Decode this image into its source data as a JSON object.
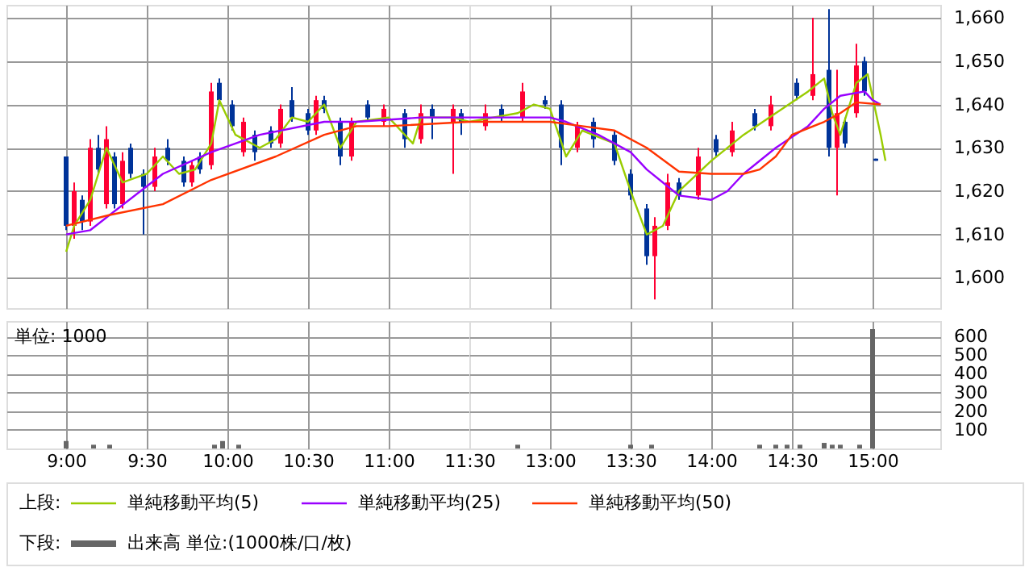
{
  "chart_data": [
    {
      "type": "candlestick",
      "grid": true,
      "tick_labels": false,
      "xlim": [
        8.63,
        11.5
      ],
      "xticks": [
        {
          "value": 9,
          "label": null
        },
        {
          "value": 9.5,
          "label": null
        },
        {
          "value": 10,
          "label": null
        },
        {
          "value": 10.5,
          "label": null
        },
        {
          "value": 11,
          "label": null
        },
        {
          "value": 11.5,
          "label": null
        }
      ],
      "ylim": [
        1593,
        1663
      ],
      "yticks": [
        {
          "value": 1600,
          "label": null
        },
        {
          "value": 1610,
          "label": null
        },
        {
          "value": 1620,
          "label": null
        },
        {
          "value": 1630,
          "label": null
        },
        {
          "value": 1640,
          "label": null
        },
        {
          "value": 1650,
          "label": null
        },
        {
          "value": 1660,
          "label": null
        }
      ],
      "series": [
        {
          "type": "candlestick",
          "color": "#003399",
          "x": [
            9,
            9.1,
            9.2,
            9.3,
            9.4,
            9.48,
            9.63,
            9.73,
            9.83,
            9.95,
            10.03,
            10.17,
            10.27,
            10.4,
            10.5,
            10.6,
            10.7,
            10.87,
            11.1,
            11.27,
            11.45
          ],
          "ohlc": [
            [
              1628,
              1628,
              1611,
              1612
            ],
            [
              1618,
              1619,
              1611,
              1613
            ],
            [
              1630,
              1633,
              1624,
              1625
            ],
            [
              1628,
              1629,
              1616,
              1617
            ],
            [
              1630,
              1631,
              1623,
              1624
            ],
            [
              1624,
              1625,
              1610,
              1621
            ],
            [
              1630,
              1632,
              1626,
              1627
            ],
            [
              1627,
              1628,
              1621,
              1622
            ],
            [
              1628,
              1629,
              1624,
              1625
            ],
            [
              1645,
              1646,
              1640,
              1641
            ],
            [
              1640,
              1641,
              1634,
              1635
            ],
            [
              1633,
              1634,
              1627,
              1629
            ],
            [
              1634,
              1635,
              1630,
              1631
            ],
            [
              1641,
              1644,
              1636,
              1637
            ],
            [
              1638,
              1639,
              1633,
              1634
            ],
            [
              1641,
              1642,
              1638,
              1639
            ],
            [
              1636,
              1637,
              1626,
              1628
            ],
            [
              1640,
              1641,
              1636,
              1637
            ],
            [
              1638,
              1639,
              1630,
              1632
            ],
            [
              1639,
              1640,
              1632,
              1637
            ],
            [
              1638,
              1639,
              1633,
              1636
            ]
          ]
        },
        {
          "type": "candlestick",
          "color": "#ff0033",
          "x": [
            9.05,
            9.15,
            9.25,
            9.35,
            9.55,
            9.78,
            9.9,
            10.1,
            10.33,
            10.55,
            10.77,
            10.97,
            11.2,
            11.4
          ],
          "ohlc": [
            [
              1612,
              1622,
              1609,
              1620
            ],
            [
              1613,
              1632,
              1612,
              1630
            ],
            [
              1617,
              1635,
              1616,
              1632
            ],
            [
              1617,
              1629,
              1616,
              1627
            ],
            [
              1621,
              1630,
              1620,
              1628
            ],
            [
              1622,
              1627,
              1621,
              1626
            ],
            [
              1626,
              1645,
              1625,
              1643
            ],
            [
              1629,
              1637,
              1628,
              1636
            ],
            [
              1631,
              1640,
              1630,
              1639
            ],
            [
              1634,
              1642,
              1633,
              1641
            ],
            [
              1628,
              1637,
              1627,
              1636
            ],
            [
              1636,
              1640,
              1635,
              1639
            ],
            [
              1632,
              1640,
              1631,
              1638
            ],
            [
              1636,
              1640,
              1624,
              1639
            ]
          ]
        },
        {
          "type": "line",
          "color": "#99cc00",
          "x": [
            9,
            9.05,
            9.15,
            9.25,
            9.35,
            9.5,
            9.6,
            9.7,
            9.8,
            9.9,
            9.95,
            10.05,
            10.2,
            10.3,
            10.4,
            10.5,
            10.6,
            10.7,
            10.8,
            11,
            11.15,
            11.2,
            11.4,
            11.5
          ],
          "values": [
            1606,
            1612,
            1618,
            1630,
            1622,
            1624,
            1628,
            1624,
            1625,
            1631,
            1641,
            1633,
            1630,
            1632,
            1637,
            1636,
            1640,
            1630,
            1636,
            1637,
            1631,
            1637,
            1637,
            1636
          ]
        },
        {
          "type": "line",
          "color": "#9900ff",
          "x": [
            9,
            9.15,
            9.27,
            9.6,
            9.9,
            10.2,
            10.6,
            10.8,
            11.2,
            11.5
          ],
          "values": [
            1610,
            1611,
            1614.5,
            1624,
            1629,
            1633,
            1636,
            1636,
            1637,
            1637
          ]
        },
        {
          "type": "line",
          "color": "#ff3300",
          "x": [
            9,
            9.27,
            9.6,
            9.9,
            10.3,
            10.6,
            10.8,
            11,
            11.5
          ],
          "values": [
            1612,
            1614.5,
            1617,
            1622.6,
            1628,
            1633,
            1635,
            1635,
            1636
          ]
        }
      ]
    },
    {
      "type": "candlestick",
      "legend_title": "上段:",
      "legend": "bottom",
      "grid": true,
      "tick_labels": "y",
      "xlim": [
        12.5,
        15.42
      ],
      "xticks": [
        {
          "value": 13,
          "label": null
        },
        {
          "value": 13.5,
          "label": null
        },
        {
          "value": 14,
          "label": null
        },
        {
          "value": 14.5,
          "label": null
        },
        {
          "value": 15,
          "label": null
        }
      ],
      "ylim": [
        1593,
        1663
      ],
      "yticks": [
        {
          "value": 1600,
          "label": "1,600"
        },
        {
          "value": 1610,
          "label": "1,610"
        },
        {
          "value": 1620,
          "label": "1,620"
        },
        {
          "value": 1630,
          "label": "1,630"
        },
        {
          "value": 1640,
          "label": "1,640"
        },
        {
          "value": 1650,
          "label": "1,650"
        },
        {
          "value": 1660,
          "label": "1,660"
        }
      ],
      "series": [
        {
          "type": "candlestick",
          "color": "#003399",
          "x": [
            12.7,
            12.97,
            13.07,
            13.27,
            13.4,
            13.5,
            13.6,
            13.8,
            14.03,
            14.27,
            14.53,
            14.73,
            14.83,
            14.95,
            15.02
          ],
          "ohlc": [
            [
              1639,
              1640,
              1636,
              1637
            ],
            [
              1641,
              1642,
              1639,
              1640
            ],
            [
              1640,
              1641,
              1626,
              1630
            ],
            [
              1636,
              1637,
              1630,
              1632
            ],
            [
              1633,
              1634,
              1626,
              1627
            ],
            [
              1624,
              1625,
              1618,
              1619
            ],
            [
              1616,
              1617,
              1603,
              1605
            ],
            [
              1622,
              1623,
              1618,
              1619
            ],
            [
              1632,
              1633,
              1628,
              1629
            ],
            [
              1638,
              1639,
              1634,
              1635
            ],
            [
              1645,
              1646,
              1641,
              1642
            ],
            [
              1648,
              1662,
              1628,
              1630
            ],
            [
              1636,
              1637,
              1630,
              1631
            ],
            [
              1650,
              1651,
              1642,
              1643
            ],
            [
              1627.5,
              1627.5,
              1627,
              1627
            ]
          ]
        },
        {
          "type": "candlestick",
          "color": "#ff0033",
          "x": [
            12.6,
            12.83,
            13.17,
            13.65,
            13.73,
            13.92,
            14.13,
            14.37,
            14.63,
            14.78,
            14.9
          ],
          "ohlc": [
            [
              1635,
              1640,
              1634,
              1638
            ],
            [
              1637,
              1645,
              1636,
              1643
            ],
            [
              1630,
              1636,
              1629,
              1635
            ],
            [
              1605,
              1614,
              1595,
              1612
            ],
            [
              1612,
              1624,
              1611,
              1622
            ],
            [
              1619,
              1630,
              1618,
              1628
            ],
            [
              1629,
              1636,
              1628,
              1634
            ],
            [
              1635,
              1642,
              1634,
              1640
            ],
            [
              1642,
              1660,
              1641,
              1647
            ],
            [
              1630,
              1648,
              1619,
              1638
            ],
            [
              1638,
              1654,
              1637,
              1649
            ]
          ]
        },
        {
          "type": "line",
          "name": "単純移動平均(5)",
          "color": "#99cc00",
          "x": [
            12.5,
            12.8,
            12.9,
            13,
            13.1,
            13.2,
            13.4,
            13.5,
            13.6,
            13.7,
            13.8,
            14,
            14.2,
            14.4,
            14.6,
            14.7,
            14.75,
            14.8,
            14.9,
            14.97,
            15.05,
            15.08
          ],
          "values": [
            1636,
            1638,
            1640,
            1639,
            1628,
            1634,
            1631,
            1620,
            1610,
            1612,
            1620,
            1627,
            1633,
            1638,
            1643,
            1646,
            1638,
            1633,
            1645,
            1647,
            1633,
            1627
          ]
        },
        {
          "type": "line",
          "name": "単純移動平均(25)",
          "color": "#9900ff",
          "x": [
            12.5,
            13,
            13.1,
            13.3,
            13.5,
            13.6,
            13.7,
            13.8,
            14,
            14.1,
            14.2,
            14.4,
            14.6,
            14.7,
            14.8,
            14.95,
            15,
            15.05
          ],
          "values": [
            1637,
            1637,
            1636,
            1633,
            1629,
            1625,
            1622,
            1619,
            1618,
            1620,
            1624,
            1630,
            1635,
            1639,
            1642,
            1643,
            1641,
            1640
          ]
        },
        {
          "type": "line",
          "name": "単純移動平均(50)",
          "color": "#ff3300",
          "x": [
            12.5,
            13,
            13.2,
            13.4,
            13.6,
            13.8,
            14,
            14.2,
            14.3,
            14.4,
            14.5,
            14.7,
            14.8,
            14.9,
            15.05
          ],
          "values": [
            1636,
            1636,
            1635,
            1634,
            1630,
            1624.5,
            1624,
            1624,
            1625,
            1628,
            1633,
            1636,
            1638,
            1640.5,
            1640
          ]
        }
      ]
    },
    {
      "type": "bar",
      "grid": true,
      "tick_labels": "x",
      "annotations": [
        "単位: 1000"
      ],
      "xlim": [
        8.63,
        11.5
      ],
      "xticks": [
        {
          "value": 9,
          "label": "9:00"
        },
        {
          "value": 9.5,
          "label": "9:30"
        },
        {
          "value": 10,
          "label": "10:00"
        },
        {
          "value": 10.5,
          "label": "10:30"
        },
        {
          "value": 11,
          "label": "11:00"
        },
        {
          "value": 11.5,
          "label": "11:30"
        }
      ],
      "ylim": [
        0,
        683
      ],
      "yticks": [
        {
          "value": 100,
          "label": null
        },
        {
          "value": 200,
          "label": null
        },
        {
          "value": 300,
          "label": null
        },
        {
          "value": 400,
          "label": null
        },
        {
          "value": 500,
          "label": null
        },
        {
          "value": 600,
          "label": null
        }
      ],
      "x": [
        9,
        9.17,
        9.27,
        9.92,
        9.97,
        10.07
      ],
      "series": [
        {
          "color": "#666666",
          "values": [
            40,
            20,
            20,
            20,
            40,
            20
          ]
        }
      ]
    },
    {
      "type": "bar",
      "legend_title": "下段:",
      "legend": "bottom",
      "grid": true,
      "xlim": [
        12.5,
        15.42
      ],
      "xticks": [
        {
          "value": 13,
          "label": "13:00"
        },
        {
          "value": 13.5,
          "label": "13:30"
        },
        {
          "value": 14,
          "label": "14:00"
        },
        {
          "value": 14.5,
          "label": "14:30"
        },
        {
          "value": 15,
          "label": "15:00"
        }
      ],
      "ylim": [
        0,
        683
      ],
      "yticks": [
        100,
        200,
        300,
        400,
        500,
        600
      ],
      "x": [
        12.8,
        13.5,
        13.63,
        14.3,
        14.4,
        14.47,
        14.55,
        14.7,
        14.75,
        14.8,
        14.92,
        15
      ],
      "series": [
        {
          "name": "出来高 単位:(1000株/口/枚)",
          "color": "#666666",
          "values": [
            20,
            20,
            20,
            20,
            20,
            20,
            20,
            30,
            20,
            20,
            20,
            640
          ]
        }
      ]
    }
  ]
}
